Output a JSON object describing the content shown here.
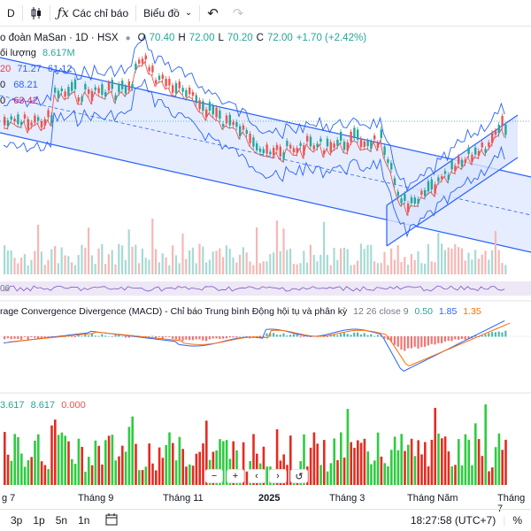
{
  "toolbar": {
    "interval": "D",
    "indicators_label": "Các chỉ báo",
    "chart_type_label": "Biểu đồ"
  },
  "legend": {
    "symbol": "o đoàn MaSan · 1D · HSX",
    "open_label": "O",
    "open": "70.40",
    "high_label": "H",
    "high": "72.00",
    "low_label": "L",
    "low": "70.20",
    "close_label": "C",
    "close": "72.00",
    "change": "+1.70 (+2.42%)",
    "volume_label": "ối lượng",
    "volume_value": "8.617M",
    "bb_values": [
      "20",
      "71.27",
      "61.12"
    ],
    "ma_label": "0",
    "ma_value": "68.21",
    "ma2_label": "0",
    "ma2_value": "63.42"
  },
  "macd": {
    "title": "rage Convergence Divergence (MACD) - Chỉ báo Trung bình Động hội tụ và phân kỳ",
    "params": "12 26 close 9",
    "v1": "0.50",
    "v2": "1.85",
    "v3": "1.35"
  },
  "volume": {
    "v1": "3.617",
    "v2": "8.617",
    "v3": "0.000"
  },
  "osc_label": "06",
  "time_axis": [
    {
      "label": "g 7",
      "bold": false
    },
    {
      "label": "Tháng 9",
      "bold": false
    },
    {
      "label": "Tháng 11",
      "bold": false
    },
    {
      "label": "2025",
      "bold": true
    },
    {
      "label": "Tháng 3",
      "bold": false
    },
    {
      "label": "Tháng Năm",
      "bold": false
    },
    {
      "label": "Tháng 7",
      "bold": false
    }
  ],
  "zoom": [
    "−",
    "+",
    "‹",
    "›",
    "↺"
  ],
  "bottom": {
    "ranges": [
      "3p",
      "1p",
      "5n",
      "1n"
    ],
    "time": "18:27:58 (UTC+7)",
    "pct": "%"
  },
  "colors": {
    "up": "#26a69a",
    "down": "#ef5350",
    "channel": "#2962ff",
    "channel_fill": "#dbe5ff",
    "bb": "#2962ff",
    "macd_line": "#2962ff",
    "signal_line": "#ff6d00"
  }
}
